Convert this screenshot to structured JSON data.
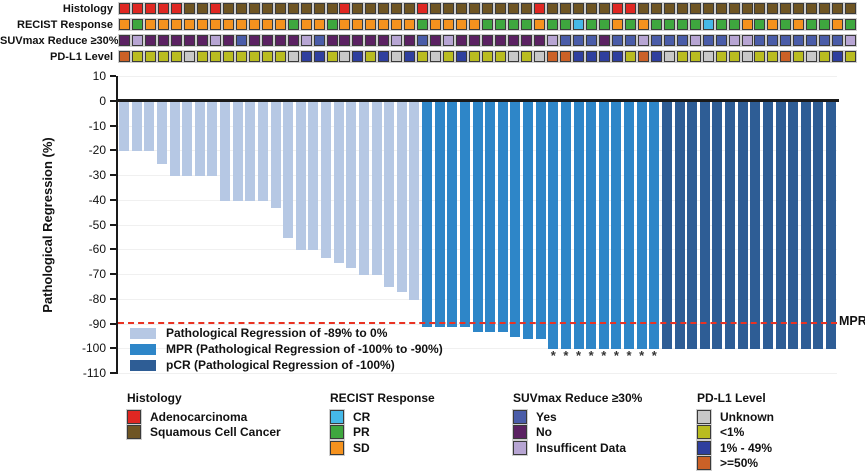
{
  "tracks": {
    "rows": [
      {
        "label": "Histology",
        "palette": {
          "A": "#DF2722",
          "S": "#6F5523"
        },
        "cells": [
          "A",
          "A",
          "A",
          "A",
          "A",
          "S",
          "S",
          "A",
          "S",
          "S",
          "S",
          "S",
          "S",
          "S",
          "S",
          "S",
          "S",
          "A",
          "S",
          "S",
          "S",
          "S",
          "S",
          "A",
          "S",
          "S",
          "S",
          "S",
          "S",
          "S",
          "S",
          "S",
          "A",
          "S",
          "S",
          "S",
          "S",
          "S",
          "A",
          "A",
          "S",
          "S",
          "S",
          "S",
          "S",
          "S",
          "S",
          "S",
          "S",
          "S",
          "S",
          "S",
          "S",
          "S",
          "S",
          "S",
          "S"
        ]
      },
      {
        "label": "RECIST Response",
        "palette": {
          "C": "#45B8E8",
          "G": "#3EA73E",
          "O": "#F5921E"
        },
        "cells": [
          "O",
          "G",
          "O",
          "O",
          "O",
          "O",
          "O",
          "O",
          "O",
          "O",
          "O",
          "O",
          "O",
          "G",
          "O",
          "O",
          "G",
          "O",
          "O",
          "O",
          "O",
          "O",
          "O",
          "G",
          "O",
          "O",
          "O",
          "O",
          "G",
          "G",
          "G",
          "G",
          "O",
          "G",
          "G",
          "C",
          "G",
          "G",
          "O",
          "G",
          "O",
          "G",
          "G",
          "G",
          "G",
          "C",
          "G",
          "G",
          "O",
          "G",
          "O",
          "G",
          "O",
          "G",
          "G",
          "O",
          "G"
        ]
      },
      {
        "label": "SUVmax Reduce ≥30%",
        "palette": {
          "Y": "#4A5CA8",
          "N": "#5B2162",
          "I": "#B7A5D3"
        },
        "cells": [
          "N",
          "I",
          "N",
          "N",
          "N",
          "N",
          "N",
          "I",
          "N",
          "Y",
          "N",
          "N",
          "N",
          "N",
          "I",
          "Y",
          "N",
          "N",
          "N",
          "N",
          "N",
          "I",
          "N",
          "Y",
          "N",
          "I",
          "N",
          "N",
          "N",
          "N",
          "N",
          "N",
          "N",
          "I",
          "Y",
          "Y",
          "Y",
          "N",
          "Y",
          "Y",
          "I",
          "Y",
          "Y",
          "Y",
          "I",
          "Y",
          "Y",
          "I",
          "I",
          "Y",
          "Y",
          "Y",
          "Y",
          "Y",
          "Y",
          "Y",
          "I"
        ]
      },
      {
        "label": "PD-L1 Level",
        "palette": {
          "U": "#C8C8C8",
          "L": "#B9BC20",
          "M": "#2F3F9E",
          "H": "#CB6127"
        },
        "cells": [
          "H",
          "L",
          "L",
          "L",
          "L",
          "U",
          "L",
          "L",
          "L",
          "L",
          "L",
          "L",
          "L",
          "U",
          "M",
          "M",
          "L",
          "U",
          "M",
          "L",
          "M",
          "U",
          "M",
          "L",
          "U",
          "L",
          "M",
          "L",
          "L",
          "L",
          "U",
          "L",
          "U",
          "H",
          "H",
          "M",
          "M",
          "M",
          "M",
          "L",
          "H",
          "M",
          "U",
          "L",
          "L",
          "U",
          "L",
          "L",
          "U",
          "L",
          "L",
          "H",
          "L",
          "U",
          "L",
          "M",
          "L"
        ]
      }
    ]
  },
  "chart_data": {
    "type": "bar",
    "title": "",
    "xlabel": "",
    "ylabel": "Pathological Regression (%)",
    "ylim": [
      10,
      -110
    ],
    "yticks": [
      10,
      0,
      -10,
      -20,
      -30,
      -40,
      -50,
      -60,
      -70,
      -80,
      -90,
      -100,
      -110
    ],
    "grid": true,
    "values": [
      -20,
      -20,
      -20,
      -25,
      -30,
      -30,
      -30,
      -30,
      -40,
      -40,
      -40,
      -40,
      -43,
      -55,
      -60,
      -60,
      -63,
      -65,
      -67,
      -70,
      -70,
      -75,
      -77,
      -80,
      -91,
      -91,
      -91,
      -91,
      -93,
      -93,
      -93,
      -95,
      -96,
      -96,
      -100,
      -100,
      -100,
      -100,
      -100,
      -100,
      -100,
      -100,
      -100,
      -100,
      -100,
      -100,
      -100,
      -100,
      -100,
      -100,
      -100,
      -100,
      -100,
      -100,
      -100,
      -100,
      -100
    ],
    "categories": [
      "reg",
      "reg",
      "reg",
      "reg",
      "reg",
      "reg",
      "reg",
      "reg",
      "reg",
      "reg",
      "reg",
      "reg",
      "reg",
      "reg",
      "reg",
      "reg",
      "reg",
      "reg",
      "reg",
      "reg",
      "reg",
      "reg",
      "reg",
      "reg",
      "mpr",
      "mpr",
      "mpr",
      "mpr",
      "mpr",
      "mpr",
      "mpr",
      "mpr",
      "mpr",
      "mpr",
      "mpr",
      "mpr",
      "mpr",
      "mpr",
      "mpr",
      "mpr",
      "mpr",
      "mpr",
      "mpr",
      "pcr",
      "pcr",
      "pcr",
      "pcr",
      "pcr",
      "pcr",
      "pcr",
      "pcr",
      "pcr",
      "pcr",
      "pcr",
      "pcr",
      "pcr",
      "pcr"
    ],
    "category_colors": {
      "reg": "#B6C8E4",
      "mpr": "#2E86C8",
      "pcr": "#2E5D95"
    },
    "asterisk_bars": [
      34,
      35,
      36,
      37,
      38,
      39,
      40,
      41,
      42
    ],
    "asterisk_glyph": "*",
    "reference_line": {
      "value": -90,
      "label": "MPR",
      "color": "#E93223"
    }
  },
  "plot_legend": {
    "items": [
      {
        "label": "Pathological Regression of -89% to 0%",
        "color": "#B6C8E4"
      },
      {
        "label": "MPR (Pathological Regression of -100% to -90%)",
        "color": "#2E86C8"
      },
      {
        "label": "pCR (Pathological Regression of -100%)",
        "color": "#2E5D95"
      }
    ]
  },
  "bottom_legends": [
    {
      "title": "Histology",
      "items": [
        {
          "label": "Adenocarcinoma",
          "color": "#DF2722"
        },
        {
          "label": "Squamous Cell Cancer",
          "color": "#6F5523"
        }
      ]
    },
    {
      "title": "RECIST Response",
      "items": [
        {
          "label": "CR",
          "color": "#45B8E8"
        },
        {
          "label": "PR",
          "color": "#3EA73E"
        },
        {
          "label": "SD",
          "color": "#F5921E"
        }
      ]
    },
    {
      "title": "SUVmax Reduce ≥30%",
      "items": [
        {
          "label": "Yes",
          "color": "#4A5CA8"
        },
        {
          "label": "No",
          "color": "#5B2162"
        },
        {
          "label": "Insufficent Data",
          "color": "#B7A5D3"
        }
      ]
    },
    {
      "title": "PD-L1 Level",
      "items": [
        {
          "label": "Unknown",
          "color": "#C8C8C8"
        },
        {
          "label": "<1%",
          "color": "#B9BC20"
        },
        {
          "label": "1% - 49%",
          "color": "#2F3F9E"
        },
        {
          "label": ">=50%",
          "color": "#CB6127"
        }
      ]
    }
  ]
}
